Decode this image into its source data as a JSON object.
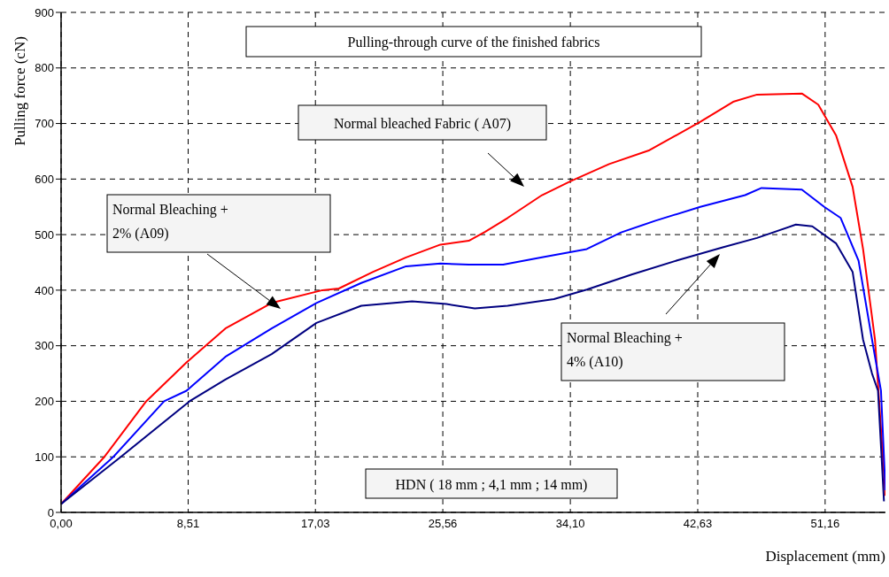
{
  "chart_data": {
    "type": "line",
    "title": "Pulling-through curve of the finished fabrics",
    "xlabel": "Displacement (mm)",
    "ylabel": "Pulling force (cN)",
    "xlim": [
      0,
      55.2
    ],
    "xticks": [
      {
        "value": 0,
        "label": "0,00"
      },
      {
        "value": 8.51,
        "label": "8,51"
      },
      {
        "value": 17.03,
        "label": "17,03"
      },
      {
        "value": 25.56,
        "label": "25,56"
      },
      {
        "value": 34.1,
        "label": "34,10"
      },
      {
        "value": 42.63,
        "label": "42,63"
      },
      {
        "value": 51.16,
        "label": "51,16"
      }
    ],
    "ylim": [
      0,
      900
    ],
    "yticks": [
      0,
      100,
      200,
      300,
      400,
      500,
      600,
      700,
      800,
      900
    ],
    "grid": true,
    "series": [
      {
        "color": "#ff0000",
        "x": [
          0,
          2.9,
          5.7,
          8.4,
          11.0,
          14.1,
          17.5,
          18.6,
          20.9,
          23.1,
          25.4,
          27.3,
          28.4,
          29.9,
          32.2,
          34.1,
          36.7,
          39.4,
          42.8,
          45.0,
          46.6,
          49.6,
          50.7,
          51.9,
          53.0,
          53.7,
          54.5,
          55.2
        ],
        "values": [
          15,
          100,
          200,
          270,
          331,
          377,
          400,
          403,
          433,
          459,
          482,
          489,
          505,
          530,
          571,
          596,
          627,
          652,
          703,
          739,
          752,
          754,
          734,
          678,
          586,
          474,
          311,
          30
        ]
      },
      {
        "color": "#0000ff",
        "x": [
          0,
          3.5,
          6.9,
          8.4,
          11.0,
          14.1,
          17.1,
          20.1,
          23.1,
          25.4,
          27.3,
          29.6,
          32.2,
          35.2,
          37.5,
          39.8,
          42.8,
          45.8,
          46.9,
          49.6,
          51.1,
          52.2,
          53.4,
          54.3,
          54.9,
          55.2
        ],
        "values": [
          15,
          100,
          200,
          219,
          280,
          331,
          377,
          413,
          443,
          448,
          446,
          446,
          459,
          474,
          504,
          525,
          550,
          571,
          584,
          581,
          550,
          530,
          453,
          311,
          219,
          40
        ]
      },
      {
        "color": "#000080",
        "x": [
          0,
          4.0,
          8.6,
          11.0,
          14.1,
          17.1,
          20.1,
          23.5,
          25.8,
          27.7,
          29.9,
          33.0,
          35.2,
          38.2,
          41.3,
          44.3,
          46.6,
          49.2,
          50.3,
          51.9,
          53.0,
          53.7,
          54.3,
          54.7,
          55.1
        ],
        "values": [
          15,
          100,
          200,
          239,
          285,
          341,
          372,
          380,
          375,
          367,
          372,
          384,
          401,
          428,
          454,
          477,
          494,
          518,
          515,
          484,
          433,
          311,
          250,
          219,
          20
        ]
      }
    ],
    "annotations": [
      "Normal bleached Fabric  ( A07)",
      "Normal Bleaching +\n2%  (A09)",
      "Normal Bleaching +\n4%  (A10)",
      "HDN ( 18 mm ; 4,1 mm ; 14 mm)"
    ]
  }
}
